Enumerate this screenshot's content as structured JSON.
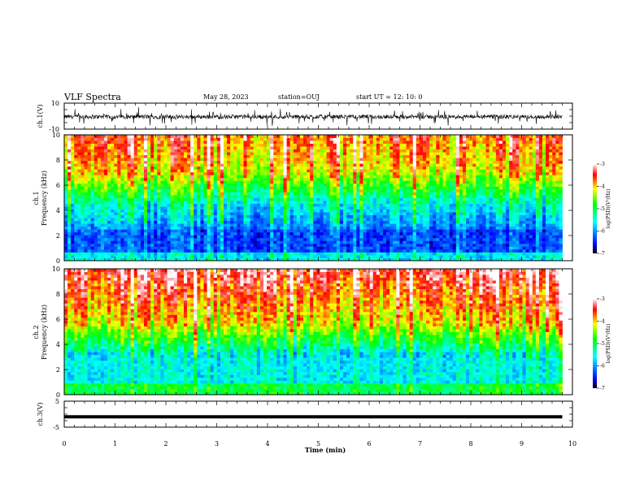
{
  "header": {
    "title": "VLF Spectra",
    "date": "May 28, 2023",
    "station": "station=OUJ",
    "start": "start  UT =   12: 10: 0"
  },
  "colors": {
    "axes": "#000000",
    "colormap": [
      "#000080",
      "#0000ff",
      "#00ffff",
      "#00ff00",
      "#ffff00",
      "#ff0000",
      "#ffffff"
    ]
  },
  "chart_data": [
    {
      "type": "line",
      "ylabel": "ch.1(V)",
      "xlim": [
        0,
        10
      ],
      "ylim": [
        -10,
        10
      ],
      "yticks": [
        10,
        -10
      ],
      "description_level": "waveform oscillating roughly between -3 and 2 V"
    },
    {
      "type": "heatmap",
      "ylabel_lines": [
        "ch.1",
        "Frequency (kHz)"
      ],
      "xlim": [
        0,
        9.8
      ],
      "ylim": [
        0,
        10
      ],
      "yticks": [
        "0",
        "2",
        "4",
        "6",
        "8",
        "10"
      ],
      "colorbar": {
        "label": "log(PSD)(V²/Hz)",
        "ticks": [
          "-3",
          "-4",
          "-5",
          "-6",
          "-7"
        ],
        "range": [
          -7,
          -3
        ]
      }
    },
    {
      "type": "heatmap",
      "ylabel_lines": [
        "ch.2",
        "Frequency (kHz)"
      ],
      "xlim": [
        0,
        9.8
      ],
      "ylim": [
        0,
        10
      ],
      "yticks": [
        "0",
        "2",
        "4",
        "6",
        "8",
        "10"
      ],
      "colorbar": {
        "label": "log(PSD)(V²/Hz)",
        "ticks": [
          "-3",
          "-4",
          "-5",
          "-6",
          "-7"
        ],
        "range": [
          -7,
          -3
        ]
      }
    },
    {
      "type": "line",
      "ylabel": "ch.3(V)",
      "xlim": [
        0,
        10
      ],
      "ylim": [
        -5,
        5
      ],
      "yticks": [
        "5",
        "-5"
      ],
      "level": -1.0
    }
  ],
  "xaxis": {
    "label": "Time (min)",
    "ticks": [
      "0",
      "1",
      "2",
      "3",
      "4",
      "5",
      "6",
      "7",
      "8",
      "9",
      "10"
    ]
  }
}
